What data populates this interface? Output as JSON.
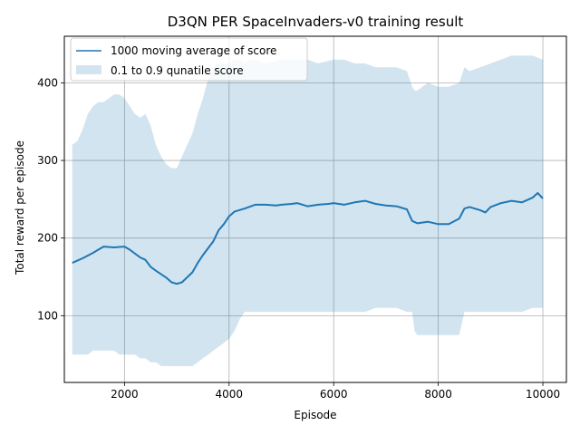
{
  "chart_data": {
    "type": "line",
    "title": "D3QN PER SpaceInvaders-v0 training result",
    "xlabel": "Episode",
    "ylabel": "Total reward per episode",
    "xlim": [
      850,
      10450
    ],
    "ylim": [
      14,
      460
    ],
    "xticks": [
      2000,
      4000,
      6000,
      8000,
      10000
    ],
    "yticks": [
      100,
      200,
      300,
      400
    ],
    "grid": true,
    "legend_position": "upper-left",
    "series": [
      {
        "name": "1000 moving average of score",
        "kind": "line",
        "color": "#1f77b4",
        "x": [
          1000,
          1200,
          1400,
          1500,
          1600,
          1800,
          2000,
          2100,
          2300,
          2400,
          2500,
          2600,
          2800,
          2900,
          3000,
          3100,
          3300,
          3400,
          3500,
          3700,
          3800,
          3900,
          4000,
          4100,
          4300,
          4500,
          4700,
          4900,
          5000,
          5200,
          5300,
          5500,
          5700,
          5900,
          6000,
          6200,
          6400,
          6600,
          6800,
          7000,
          7200,
          7400,
          7500,
          7600,
          7800,
          8000,
          8200,
          8400,
          8500,
          8600,
          8800,
          8900,
          9000,
          9200,
          9400,
          9600,
          9800,
          9900,
          10000
        ],
        "y": [
          168,
          174,
          181,
          185,
          189,
          188,
          189,
          185,
          175,
          172,
          163,
          158,
          149,
          143,
          141,
          143,
          156,
          168,
          178,
          196,
          210,
          218,
          228,
          234,
          238,
          243,
          243,
          242,
          243,
          244,
          245,
          241,
          243,
          244,
          245,
          243,
          246,
          248,
          244,
          242,
          241,
          237,
          222,
          219,
          221,
          218,
          218,
          225,
          238,
          240,
          236,
          233,
          240,
          245,
          248,
          246,
          252,
          258,
          251
        ]
      },
      {
        "name": "0.1 to 0.9 qunatile score",
        "kind": "band",
        "color": "#1f77b4",
        "opacity": 0.2,
        "x": [
          1000,
          1100,
          1200,
          1300,
          1400,
          1500,
          1600,
          1700,
          1800,
          1900,
          2000,
          2100,
          2200,
          2300,
          2400,
          2500,
          2600,
          2700,
          2800,
          2900,
          3000,
          3100,
          3200,
          3300,
          3400,
          3500,
          3600,
          3700,
          3800,
          3900,
          4000,
          4100,
          4200,
          4300,
          4400,
          4500,
          4700,
          5000,
          5300,
          5500,
          5700,
          6000,
          6200,
          6400,
          6600,
          6800,
          7000,
          7200,
          7400,
          7500,
          7550,
          7600,
          7800,
          8000,
          8200,
          8400,
          8500,
          8600,
          8800,
          9000,
          9200,
          9400,
          9600,
          9800,
          10000
        ],
        "lower": [
          50,
          50,
          50,
          50,
          55,
          55,
          55,
          55,
          55,
          50,
          50,
          50,
          50,
          45,
          45,
          40,
          40,
          35,
          35,
          35,
          35,
          35,
          35,
          35,
          40,
          45,
          50,
          55,
          60,
          65,
          70,
          80,
          95,
          105,
          105,
          105,
          105,
          105,
          105,
          105,
          105,
          105,
          105,
          105,
          105,
          110,
          110,
          110,
          105,
          105,
          80,
          75,
          75,
          75,
          75,
          75,
          105,
          105,
          105,
          105,
          105,
          105,
          105,
          110,
          110
        ],
        "upper": [
          320,
          325,
          340,
          360,
          370,
          375,
          375,
          380,
          385,
          385,
          380,
          370,
          360,
          355,
          360,
          345,
          320,
          305,
          295,
          290,
          290,
          305,
          320,
          335,
          360,
          380,
          405,
          420,
          425,
          425,
          425,
          430,
          430,
          425,
          430,
          430,
          425,
          430,
          430,
          430,
          425,
          430,
          430,
          425,
          425,
          420,
          420,
          420,
          415,
          395,
          390,
          390,
          400,
          395,
          395,
          400,
          420,
          415,
          420,
          425,
          430,
          435,
          435,
          435,
          430
        ]
      }
    ]
  }
}
